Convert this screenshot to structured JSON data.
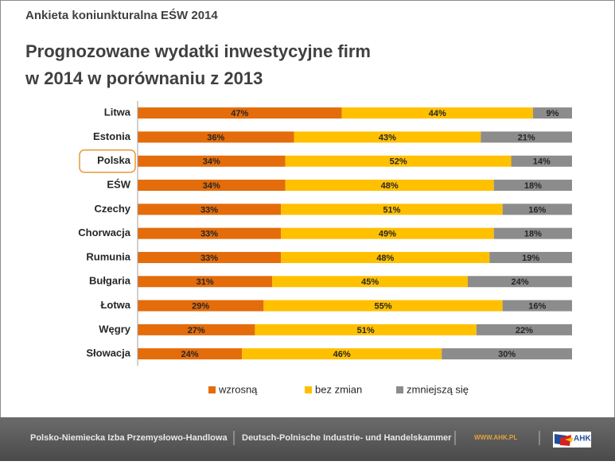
{
  "header": "Ankieta koniunkturalna EŚW 2014",
  "chart_data": {
    "type": "stacked_barh",
    "title": [
      "Prognozowane wydatki inwestycyjne firm",
      "w 2014 w porównaniu z 2013"
    ],
    "categories": [
      "Litwa",
      "Estonia",
      "Polska",
      "EŚW",
      "Czechy",
      "Chorwacja",
      "Rumunia",
      "Bułgaria",
      "Łotwa",
      "Węgry",
      "Słowacja"
    ],
    "highlight_category": 2,
    "xlim": [
      0,
      100
    ],
    "series": [
      {
        "name": "wzrosną",
        "color": "#e46c0a",
        "values": [
          47,
          36,
          34,
          34,
          33,
          33,
          33,
          31,
          29,
          27,
          24
        ],
        "value_labels": [
          "47%",
          "36%",
          "34%",
          "34%",
          "33%",
          "33%",
          "33%",
          "31%",
          "29%",
          "27%",
          "24%"
        ]
      },
      {
        "name": "bez zmian",
        "color": "#ffc000",
        "values": [
          44,
          43,
          52,
          48,
          51,
          49,
          48,
          45,
          55,
          51,
          46
        ],
        "value_labels": [
          "44%",
          "43%",
          "52%",
          "48%",
          "51%",
          "49%",
          "48%",
          "45%",
          "55%",
          "51%",
          "46%"
        ]
      },
      {
        "name": "zmniejszą się",
        "color": "#8c8c8c",
        "values": [
          9,
          21,
          14,
          18,
          16,
          18,
          19,
          24,
          16,
          22,
          30
        ],
        "value_labels": [
          "9%",
          "21%",
          "14%",
          "18%",
          "16%",
          "18%",
          "19%",
          "24%",
          "16%",
          "22%",
          "30%"
        ]
      }
    ],
    "legend": "bottom"
  },
  "footer": {
    "left": "Polsko-Niemiecka Izba Przemysłowo-Handlowa",
    "middle": "Deutsch-Polnische Industrie- und Handelskammer",
    "url": "WWW.AHK.PL",
    "logo": "AHK"
  }
}
